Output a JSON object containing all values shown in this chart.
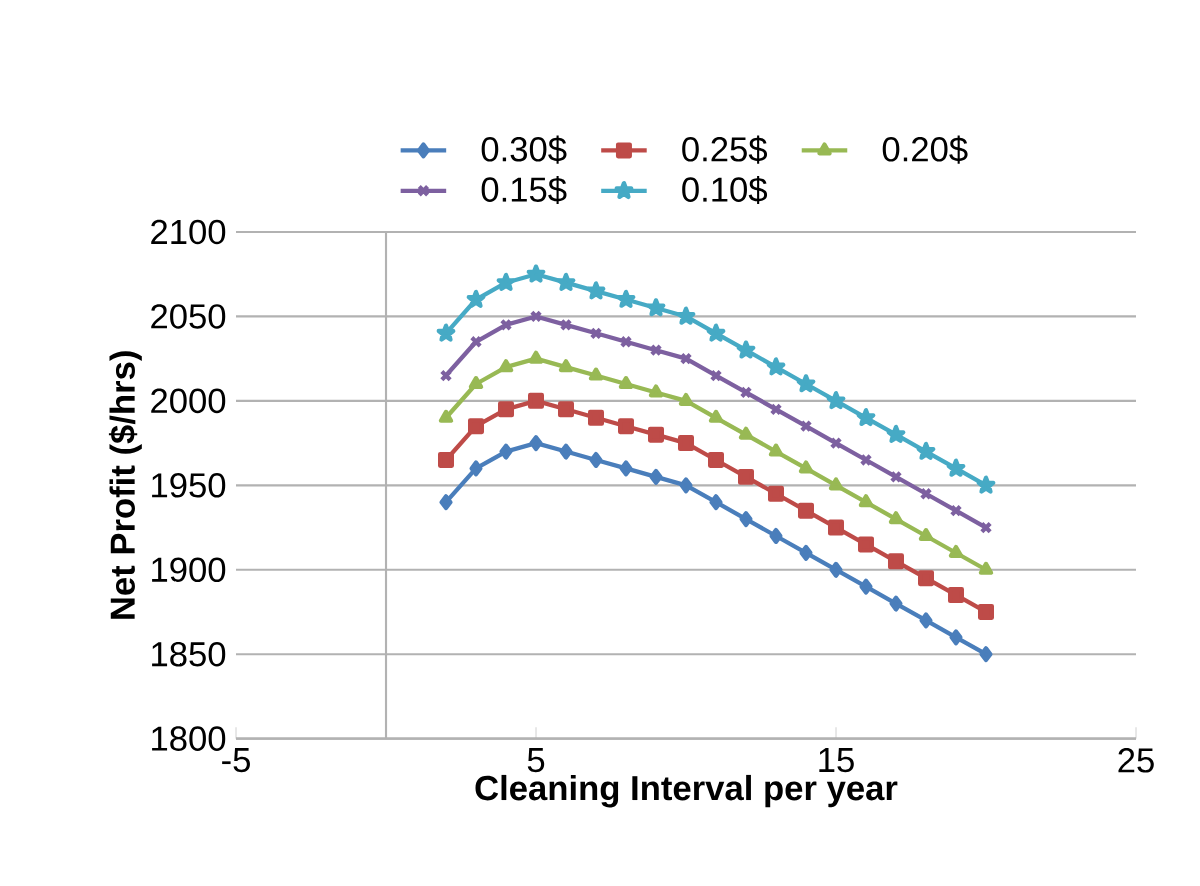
{
  "chart_data": {
    "type": "line",
    "xlabel": "Cleaning Interval per year",
    "ylabel": "Net Profit ($/hrs)",
    "x": [
      2,
      3,
      4,
      5,
      6,
      7,
      8,
      9,
      10,
      11,
      12,
      13,
      14,
      15,
      16,
      17,
      18,
      19,
      20
    ],
    "series": [
      {
        "name": "0.30$",
        "color": "#4a7ebb",
        "marker": "diamond",
        "values": [
          1940,
          1960,
          1970,
          1975,
          1970,
          1965,
          1960,
          1955,
          1950,
          1940,
          1930,
          1920,
          1910,
          1900,
          1890,
          1880,
          1870,
          1860,
          1850
        ]
      },
      {
        "name": "0.25$",
        "color": "#be4b48",
        "marker": "square",
        "values": [
          1965,
          1985,
          1995,
          2000,
          1995,
          1990,
          1985,
          1980,
          1975,
          1965,
          1955,
          1945,
          1935,
          1925,
          1915,
          1905,
          1895,
          1885,
          1875
        ]
      },
      {
        "name": "0.20$",
        "color": "#98b954",
        "marker": "triangle",
        "values": [
          1990,
          2010,
          2020,
          2025,
          2020,
          2015,
          2010,
          2005,
          2000,
          1990,
          1980,
          1970,
          1960,
          1950,
          1940,
          1930,
          1920,
          1910,
          1900
        ]
      },
      {
        "name": "0.15$",
        "color": "#7d60a0",
        "marker": "cross",
        "values": [
          2015,
          2035,
          2045,
          2050,
          2045,
          2040,
          2035,
          2030,
          2025,
          2015,
          2005,
          1995,
          1985,
          1975,
          1965,
          1955,
          1945,
          1935,
          1925
        ]
      },
      {
        "name": "0.10$",
        "color": "#46aac5",
        "marker": "star",
        "values": [
          2040,
          2060,
          2070,
          2075,
          2070,
          2065,
          2060,
          2055,
          2050,
          2040,
          2030,
          2020,
          2010,
          2000,
          1990,
          1980,
          1970,
          1960,
          1950
        ]
      }
    ],
    "xlim": [
      -5,
      25
    ],
    "xticks": [
      -5,
      5,
      15,
      25
    ],
    "ylim": [
      1800,
      2100
    ],
    "yticks": [
      1800,
      1850,
      1900,
      1950,
      2000,
      2050,
      2100
    ],
    "grid": "y",
    "legend": "top",
    "line_style": "solid"
  }
}
